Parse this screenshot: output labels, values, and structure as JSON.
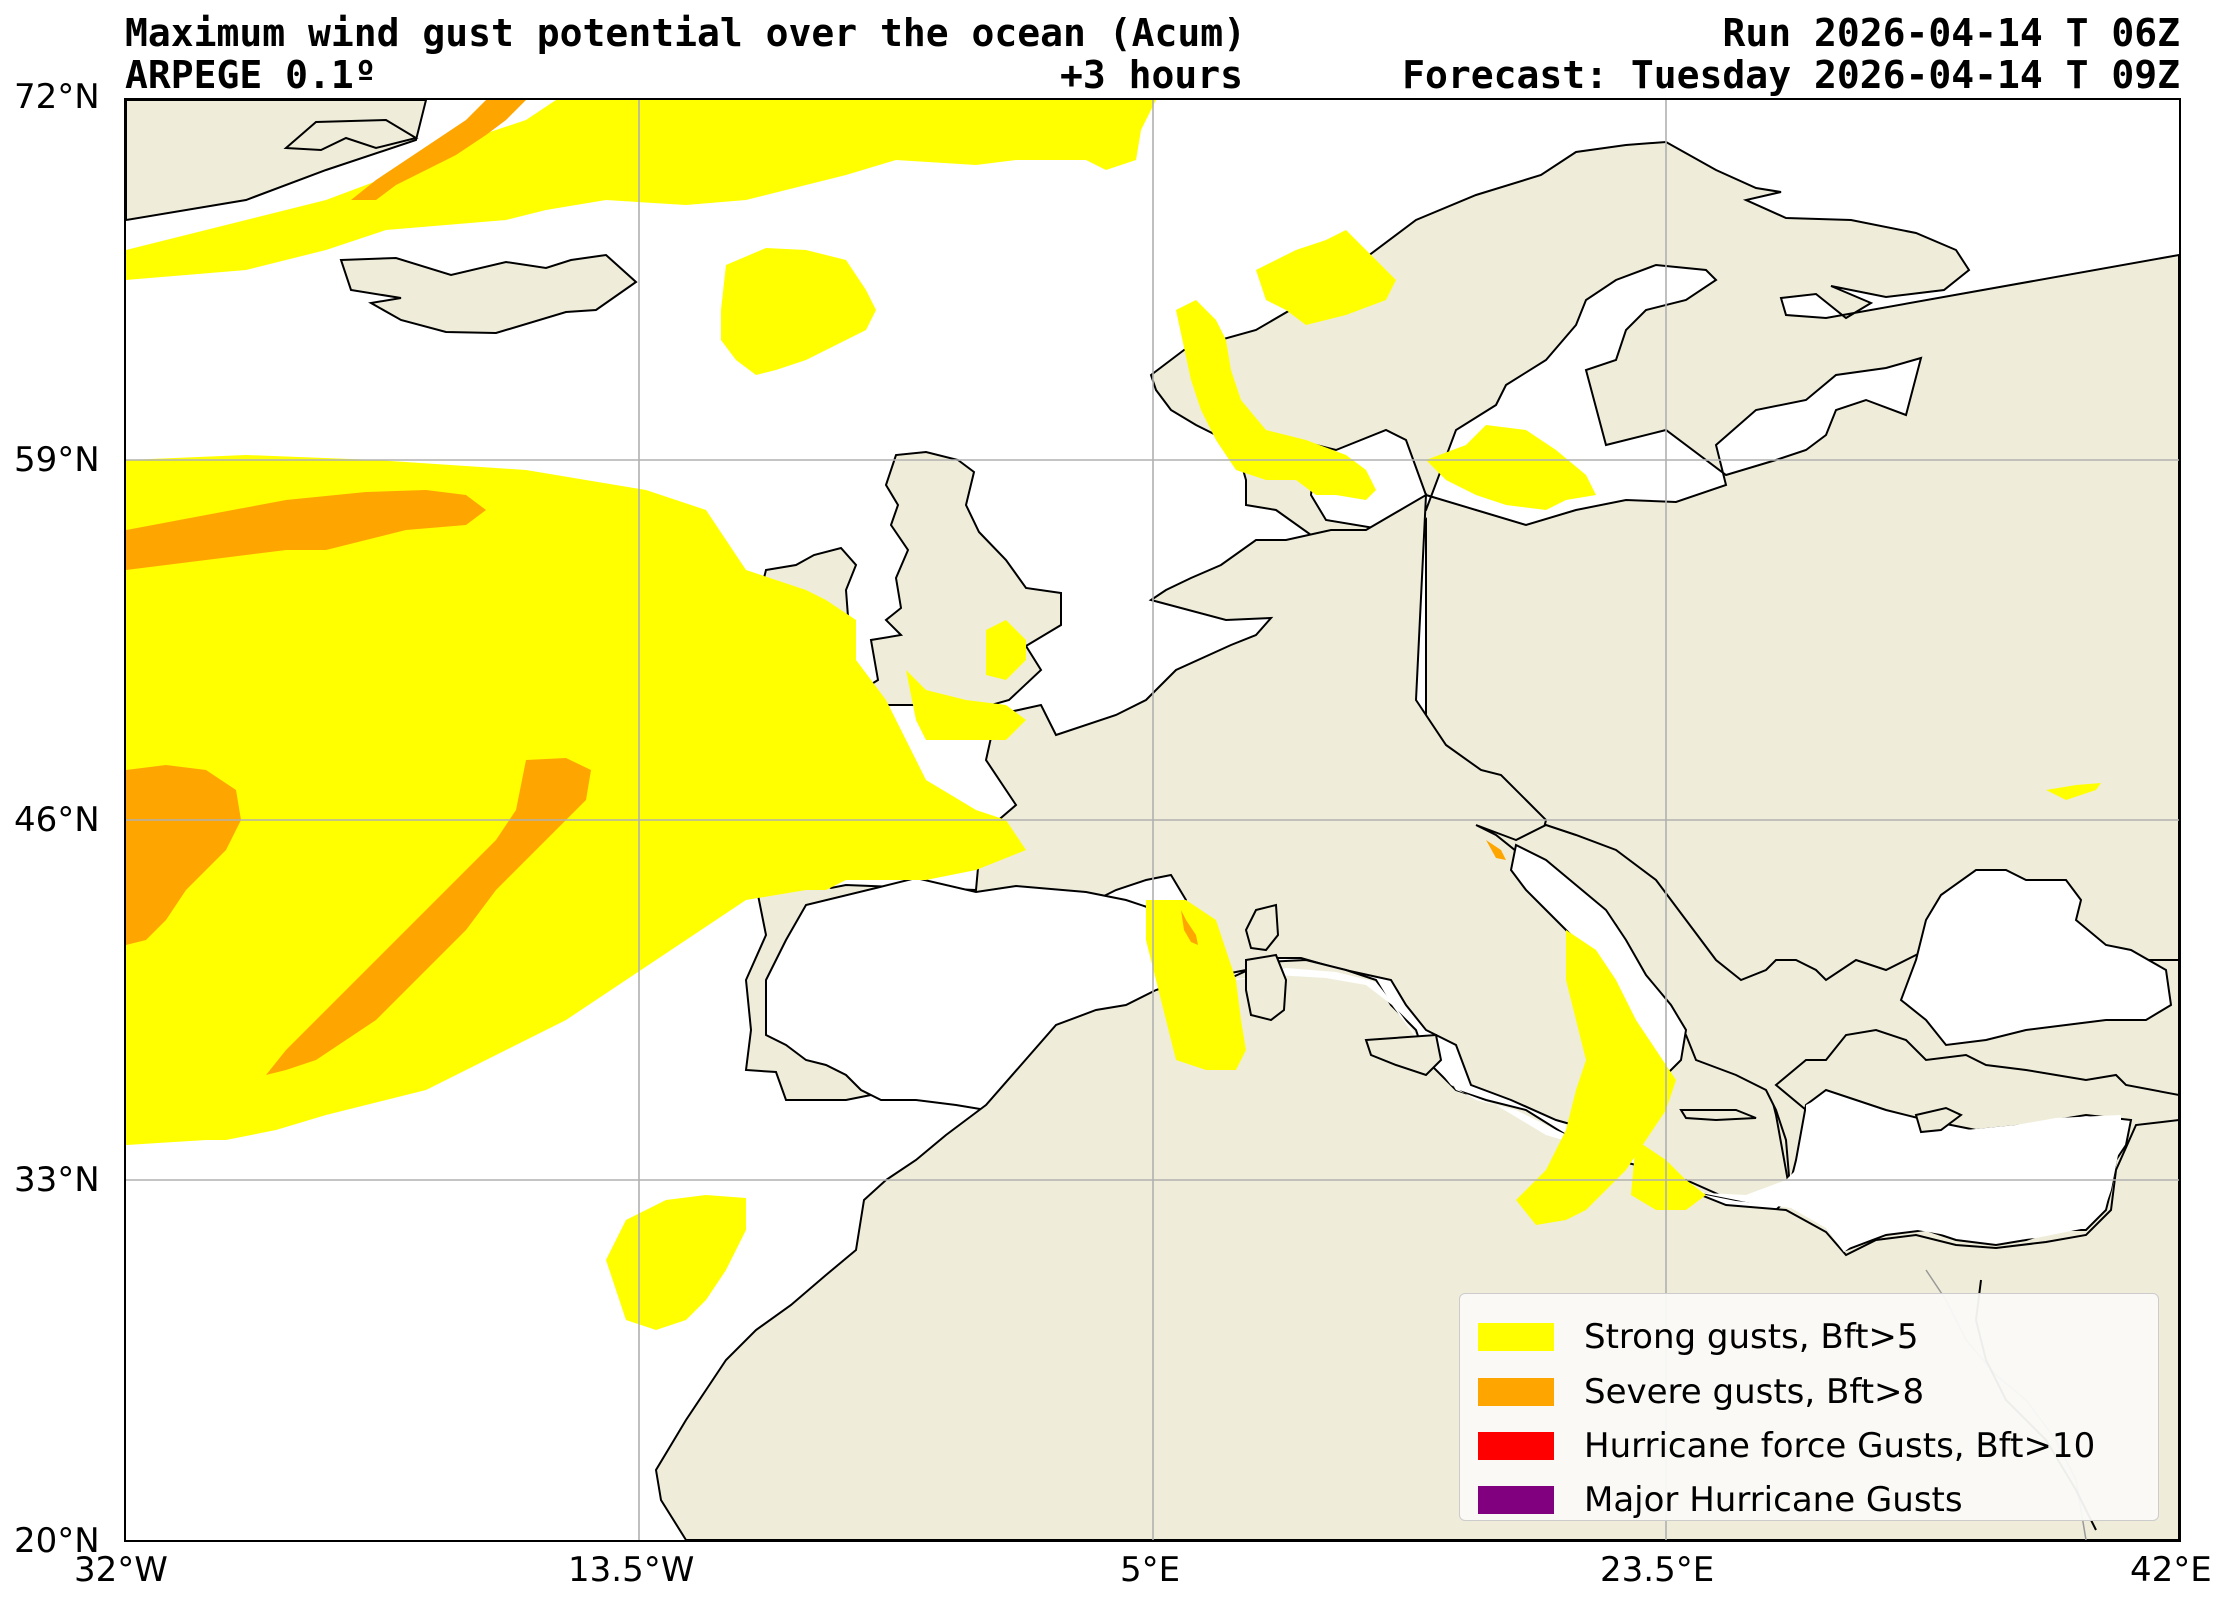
{
  "header": {
    "title": "Maximum wind gust potential over the ocean (Acum)",
    "model": "ARPEGE 0.1º",
    "lead": "+3 hours",
    "run": "Run 2026-04-14 T 06Z",
    "forecast": "Forecast: Tuesday 2026-04-14 T 09Z"
  },
  "axes": {
    "lat_labels": [
      "72°N",
      "59°N",
      "46°N",
      "33°N",
      "20°N"
    ],
    "lon_labels": [
      "32°W",
      "13.5°W",
      "5°E",
      "23.5°E",
      "42°E"
    ]
  },
  "map": {
    "extent": {
      "lon_min": -32,
      "lon_max": 42,
      "lat_min": 20,
      "lat_max": 72
    },
    "land_color": "#efedda",
    "sea_color": "#ffffff",
    "gridlines": true
  },
  "legend": {
    "items": [
      {
        "label": "Strong gusts, Bft>5",
        "color": "#ffff00"
      },
      {
        "label": "Severe gusts, Bft>8",
        "color": "#ffa500"
      },
      {
        "label": "Hurricane force Gusts, Bft>10",
        "color": "#ff0000"
      },
      {
        "label": "Major Hurricane Gusts",
        "color": "#800080"
      }
    ]
  }
}
